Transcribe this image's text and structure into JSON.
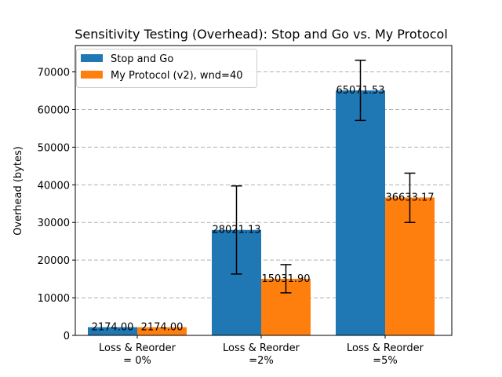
{
  "chart_data": {
    "type": "bar",
    "title": "Sensitivity Testing (Overhead): Stop and Go vs. My Protocol",
    "xlabel": "",
    "ylabel": "Overhead (bytes)",
    "ylim": [
      0,
      77000
    ],
    "yticks": [
      0,
      10000,
      20000,
      30000,
      40000,
      50000,
      60000,
      70000
    ],
    "grid": "y-dashed",
    "legend_position": "top-left",
    "categories": [
      [
        "Loss & Reorder",
        "= 0%"
      ],
      [
        "Loss & Reorder",
        "=2%"
      ],
      [
        "Loss & Reorder",
        "=5%"
      ]
    ],
    "series": [
      {
        "name": "Stop and Go",
        "color": "#1f77b4",
        "values": [
          2174.0,
          28021.13,
          65071.53
        ],
        "labels": [
          "2174.00",
          "28021.13",
          "65071.53"
        ],
        "error_low": [
          2174,
          16300,
          57100
        ],
        "error_high": [
          2174,
          39700,
          73100
        ]
      },
      {
        "name": "My Protocol (v2), wnd=40",
        "color": "#ff7f0e",
        "values": [
          2174.0,
          15031.9,
          36633.17
        ],
        "labels": [
          "2174.00",
          "15031.90",
          "36633.17"
        ],
        "error_low": [
          2174,
          11300,
          30000
        ],
        "error_high": [
          2174,
          18800,
          43100
        ]
      }
    ]
  }
}
